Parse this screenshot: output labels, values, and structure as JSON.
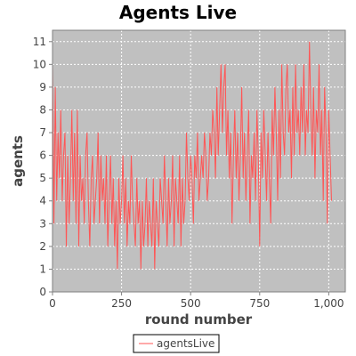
{
  "chart_data": {
    "type": "line",
    "title": "Agents Live",
    "xlabel": "round number",
    "ylabel": "agents",
    "xlim": [
      0,
      1060
    ],
    "ylim": [
      0,
      11.5
    ],
    "xticks": [
      0,
      250,
      500,
      750,
      1000
    ],
    "xtick_labels": [
      "0",
      "250",
      "500",
      "750",
      "1,000"
    ],
    "yticks": [
      0,
      1,
      2,
      3,
      4,
      5,
      6,
      7,
      8,
      9,
      10,
      11
    ],
    "ytick_labels": [
      "0",
      "1",
      "2",
      "3",
      "4",
      "5",
      "6",
      "7",
      "8",
      "9",
      "10",
      "11"
    ],
    "grid": true,
    "plot_background": "#c0c0c0",
    "legend_position": "bottom-center",
    "series": [
      {
        "name": "agentsLive",
        "color": "#ff5555",
        "x": [
          0,
          5,
          10,
          15,
          20,
          25,
          30,
          35,
          40,
          45,
          50,
          55,
          60,
          65,
          70,
          75,
          80,
          85,
          90,
          95,
          100,
          105,
          110,
          115,
          120,
          125,
          130,
          135,
          140,
          145,
          150,
          155,
          160,
          165,
          170,
          175,
          180,
          185,
          190,
          195,
          200,
          205,
          210,
          215,
          220,
          225,
          230,
          235,
          240,
          245,
          250,
          255,
          260,
          265,
          270,
          275,
          280,
          285,
          290,
          295,
          300,
          305,
          310,
          315,
          320,
          325,
          330,
          335,
          340,
          345,
          350,
          355,
          360,
          365,
          370,
          375,
          380,
          385,
          390,
          395,
          400,
          405,
          410,
          415,
          420,
          425,
          430,
          435,
          440,
          445,
          450,
          455,
          460,
          465,
          470,
          475,
          480,
          485,
          490,
          495,
          500,
          505,
          510,
          515,
          520,
          525,
          530,
          535,
          540,
          545,
          550,
          555,
          560,
          565,
          570,
          575,
          580,
          585,
          590,
          595,
          600,
          605,
          610,
          615,
          620,
          625,
          630,
          635,
          640,
          645,
          650,
          655,
          660,
          665,
          670,
          675,
          680,
          685,
          690,
          695,
          700,
          705,
          710,
          715,
          720,
          725,
          730,
          735,
          740,
          745,
          750,
          755,
          760,
          765,
          770,
          775,
          780,
          785,
          790,
          795,
          800,
          805,
          810,
          815,
          820,
          825,
          830,
          835,
          840,
          845,
          850,
          855,
          860,
          865,
          870,
          875,
          880,
          885,
          890,
          895,
          900,
          905,
          910,
          915,
          920,
          925,
          930,
          935,
          940,
          945,
          950,
          955,
          960,
          965,
          970,
          975,
          980,
          985,
          990,
          995,
          1000,
          1005,
          1010
        ],
        "values": [
          10,
          3,
          9,
          4,
          7,
          5,
          8,
          4,
          6,
          7,
          2,
          6,
          3,
          5,
          8,
          4,
          7,
          3,
          8,
          2,
          6,
          4,
          5,
          3,
          6,
          7,
          4,
          2,
          5,
          6,
          3,
          4,
          5,
          7,
          3,
          6,
          4,
          5,
          3,
          6,
          2,
          4,
          6,
          3,
          5,
          2,
          4,
          1,
          5,
          3,
          4,
          6,
          3,
          5,
          2,
          4,
          3,
          6,
          4,
          3,
          2,
          5,
          3,
          4,
          1,
          4,
          2,
          3,
          5,
          2,
          4,
          3,
          2,
          5,
          1,
          4,
          3,
          2,
          5,
          4,
          3,
          6,
          4,
          2,
          5,
          3,
          4,
          6,
          2,
          5,
          4,
          3,
          6,
          2,
          5,
          3,
          4,
          7,
          5,
          4,
          6,
          5,
          3,
          6,
          5,
          7,
          4,
          5,
          6,
          5,
          7,
          6,
          4,
          5,
          7,
          6,
          8,
          7,
          5,
          9,
          6,
          8,
          10,
          7,
          9,
          10,
          6,
          8,
          5,
          7,
          3,
          6,
          8,
          5,
          7,
          4,
          6,
          9,
          5,
          7,
          4,
          6,
          8,
          3,
          6,
          5,
          7,
          4,
          8,
          6,
          2,
          7,
          5,
          8,
          6,
          4,
          7,
          5,
          3,
          8,
          6,
          9,
          7,
          4,
          8,
          5,
          10,
          7,
          6,
          9,
          10,
          7,
          8,
          5,
          9,
          6,
          10,
          7,
          8,
          6,
          9,
          7,
          10,
          6,
          8,
          7,
          11,
          8,
          6,
          9,
          5,
          8,
          7,
          10,
          6,
          8,
          4,
          9,
          7,
          3,
          8,
          6,
          4
        ]
      }
    ]
  }
}
